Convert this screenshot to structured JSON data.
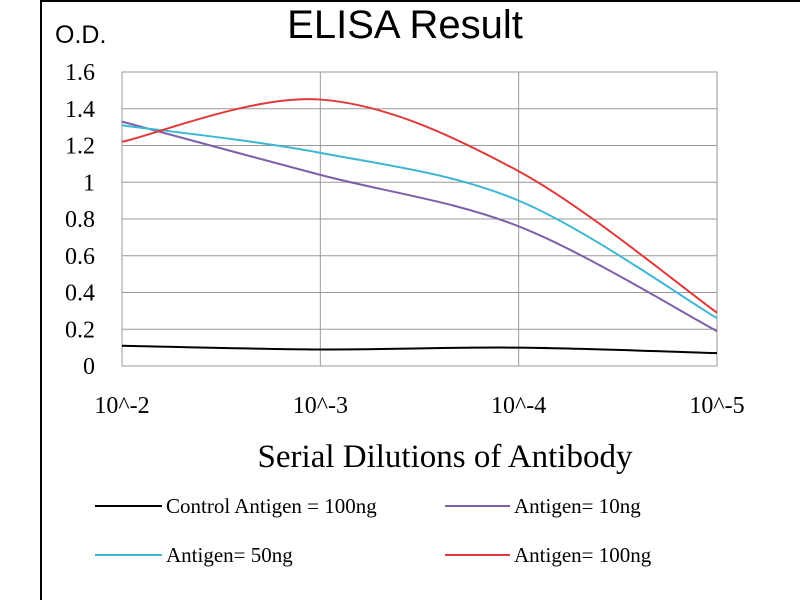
{
  "chart_data": {
    "type": "line",
    "title": "ELISA Result",
    "ylabel": "O.D.",
    "xlabel": "Serial Dilutions  of Antibody",
    "categories": [
      "10^-2",
      "10^-3",
      "10^-4",
      "10^-5"
    ],
    "y_ticks": [
      "0",
      "0.2",
      "0.4",
      "0.6",
      "0.8",
      "1",
      "1.2",
      "1.4",
      "1.6"
    ],
    "ylim": [
      0,
      1.6
    ],
    "grid": true,
    "legend_position": "bottom",
    "series": [
      {
        "name": "Control Antigen = 100ng",
        "color": "#000000",
        "values": [
          0.11,
          0.09,
          0.1,
          0.07
        ]
      },
      {
        "name": "Antigen= 10ng",
        "color": "#7f5fa8",
        "values": [
          1.33,
          1.04,
          0.76,
          0.19
        ]
      },
      {
        "name": "Antigen= 50ng",
        "color": "#3bb7d4",
        "values": [
          1.31,
          1.16,
          0.9,
          0.26
        ]
      },
      {
        "name": "Antigen= 100ng",
        "color": "#e03a3a",
        "values": [
          1.22,
          1.45,
          1.06,
          0.29
        ]
      }
    ]
  }
}
